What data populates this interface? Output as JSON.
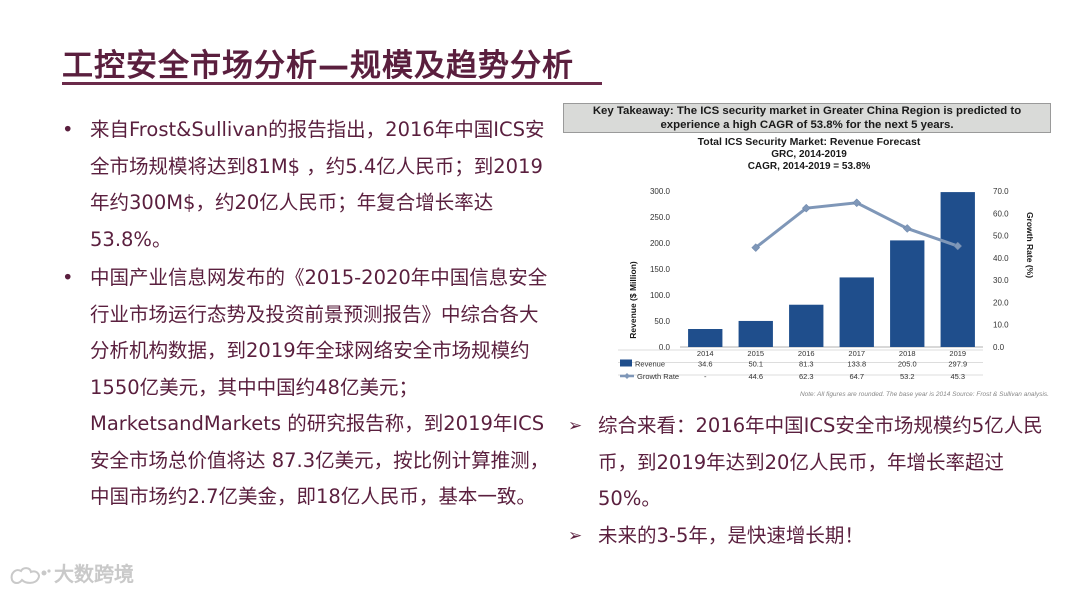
{
  "title": "工控安全市场分析—规模及趋势分析",
  "bullets": [
    "来自Frost&Sullivan的报告指出，2016年中国ICS安全市场规模将达到81M$ ，约5.4亿人民币；到2019年约300M$，约20亿人民币；年复合增长率达53.8%。",
    "中国产业信息网发布的《2015-2020年中国信息安全行业市场运行态势及投资前景预测报告》中综合各大分析机构数据，到2019年全球网络安全市场规模约1550亿美元，其中中国约48亿美元；MarketsandMarkets 的研究报告称，到2019年ICS安全市场总价值将达 87.3亿美元，按比例计算推测，中国市场约2.7亿美金，即18亿人民币，基本一致。"
  ],
  "bullet_marker": "•",
  "takeaway": "Key Takeaway: The ICS security market in Greater China Region is predicted to experience  a high CAGR of 53.8% for the next 5 years.",
  "conclusions": [
    "综合来看：2016年中国ICS安全市场规模约5亿人民币，到2019年达到20亿人民币，年增长率超过50%。",
    "未来的3-5年，是快速增长期！"
  ],
  "conclusion_marker": "➢",
  "watermark": "大数跨境",
  "colors": {
    "text": "#5a1f3e",
    "bar": "#1f4e8c",
    "line": "#7f97b8",
    "takeaway_bg": "#d9dad8"
  },
  "chart_data": {
    "type": "bar",
    "title": "Total ICS Security Market: Revenue Forecast",
    "subtitle": "GRC, 2014-2019",
    "subtitle2": "CAGR, 2014-2019 = 53.8%",
    "ylabel": "Revenue ($ Million)",
    "y2label": "Growth Rate (%)",
    "ylim": [
      0,
      300
    ],
    "y2lim": [
      0,
      70
    ],
    "yticks": [
      "0.0",
      "50.0",
      "100.0",
      "150.0",
      "200.0",
      "250.0",
      "300.0"
    ],
    "y2ticks": [
      "0.0",
      "10.0",
      "20.0",
      "30.0",
      "40.0",
      "50.0",
      "60.0",
      "70.0"
    ],
    "categories": [
      "2014",
      "2015",
      "2016",
      "2017",
      "2018",
      "2019"
    ],
    "series": [
      {
        "name": "Revenue",
        "type": "bar",
        "values": [
          34.6,
          50.1,
          81.3,
          133.8,
          205.0,
          297.9
        ],
        "labels": [
          "34.6",
          "50.1",
          "81.3",
          "133.8",
          "205.0",
          "297.9"
        ]
      },
      {
        "name": "Growth Rate",
        "type": "line",
        "values": [
          null,
          44.6,
          62.3,
          64.7,
          53.2,
          45.3
        ],
        "labels": [
          "-",
          "44.6",
          "62.3",
          "64.7",
          "53.2",
          "45.3"
        ]
      }
    ],
    "note": "Note: All figures are rounded. The base year is 2014 Source: Frost & Sullivan analysis."
  }
}
